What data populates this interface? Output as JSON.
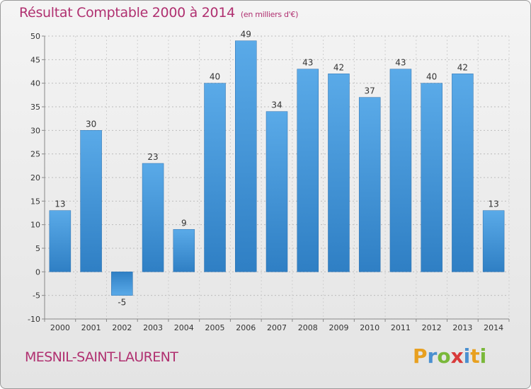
{
  "title": "Résultat Comptable 2000 à 2014",
  "subtitle": "(en milliers d'€)",
  "commune": "MESNIL-SAINT-LAURENT",
  "logo": {
    "letters": [
      "P",
      "r",
      "o",
      "x",
      "i",
      "t",
      "i"
    ],
    "colors": [
      "#e8a020",
      "#4a90d0",
      "#7ab83a",
      "#d83a3a",
      "#4a90d0",
      "#e8a020",
      "#7ab83a"
    ]
  },
  "chart_data": {
    "type": "bar",
    "categories": [
      "2000",
      "2001",
      "2002",
      "2003",
      "2004",
      "2005",
      "2006",
      "2007",
      "2008",
      "2009",
      "2010",
      "2011",
      "2012",
      "2013",
      "2014"
    ],
    "values": [
      13,
      30,
      -5,
      23,
      9,
      40,
      49,
      34,
      43,
      42,
      37,
      43,
      40,
      42,
      13
    ],
    "data_labels": [
      "13",
      "30",
      "-5",
      "23",
      "9",
      "40",
      "49",
      "34",
      "43",
      "42",
      "37",
      "43",
      "40",
      "42",
      "13"
    ],
    "yticks": [
      "-10",
      "-5",
      "0",
      "5",
      "10",
      "15",
      "20",
      "25",
      "30",
      "35",
      "40",
      "45",
      "50"
    ],
    "ylim": [
      -10,
      50
    ],
    "grid": true,
    "bar_color": "#3f92d8"
  }
}
